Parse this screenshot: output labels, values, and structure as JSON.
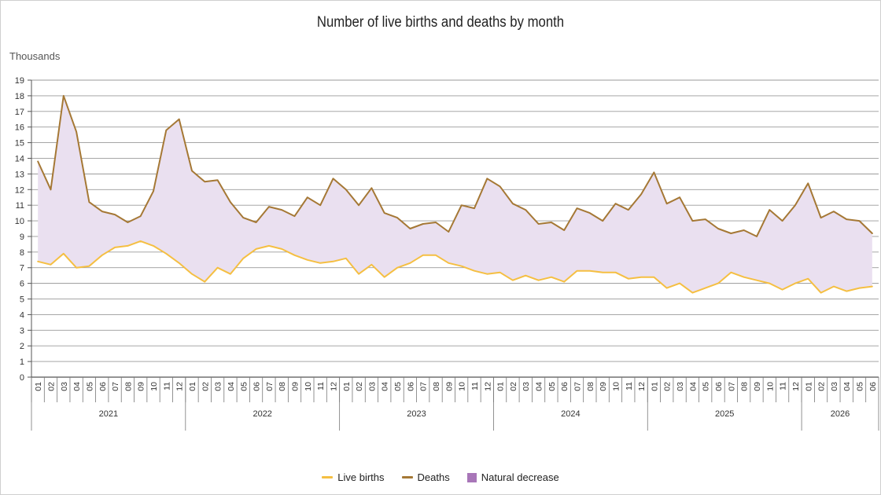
{
  "chart_data": {
    "type": "line",
    "title": "Number of live births and deaths by month",
    "ylabel": "Thousands",
    "xlabel": "",
    "ylim": [
      0,
      19
    ],
    "yticks": [
      0,
      1,
      2,
      3,
      4,
      5,
      6,
      7,
      8,
      9,
      10,
      11,
      12,
      13,
      14,
      15,
      16,
      17,
      18,
      19
    ],
    "grid": true,
    "legend_position": "bottom-center",
    "years": [
      {
        "label": "2021",
        "months": 12
      },
      {
        "label": "2022",
        "months": 12
      },
      {
        "label": "2023",
        "months": 12
      },
      {
        "label": "2024",
        "months": 12
      },
      {
        "label": "2025",
        "months": 12
      },
      {
        "label": "2026",
        "months": 6
      }
    ],
    "month_labels": [
      "01",
      "02",
      "03",
      "04",
      "05",
      "06",
      "07",
      "08",
      "09",
      "10",
      "11",
      "12"
    ],
    "series": [
      {
        "name": "Live births",
        "color": "#f5bf42",
        "values": [
          7.4,
          7.2,
          7.9,
          7.0,
          7.1,
          7.8,
          8.3,
          8.4,
          8.7,
          8.4,
          7.9,
          7.3,
          6.6,
          6.1,
          7.0,
          6.6,
          7.6,
          8.2,
          8.4,
          8.2,
          7.8,
          7.5,
          7.3,
          7.4,
          7.6,
          6.6,
          7.2,
          6.4,
          7.0,
          7.3,
          7.8,
          7.8,
          7.3,
          7.1,
          6.8,
          6.6,
          6.7,
          6.2,
          6.5,
          6.2,
          6.4,
          6.1,
          6.8,
          6.8,
          6.7,
          6.7,
          6.3,
          6.4,
          6.4,
          5.7,
          6.0,
          5.4,
          5.7,
          6.0,
          6.7,
          6.4,
          6.2,
          6.0,
          5.6,
          6.0,
          6.3,
          5.4,
          5.8,
          5.5,
          5.7,
          5.8
        ]
      },
      {
        "name": "Deaths",
        "color": "#a57835",
        "values": [
          13.8,
          12.0,
          18.0,
          15.7,
          11.2,
          10.6,
          10.4,
          9.9,
          10.3,
          11.9,
          15.8,
          16.5,
          13.2,
          12.5,
          12.6,
          11.2,
          10.2,
          9.9,
          10.9,
          10.7,
          10.3,
          11.5,
          11.0,
          12.7,
          12.0,
          11.0,
          12.1,
          10.5,
          10.2,
          9.5,
          9.8,
          9.9,
          9.3,
          11.0,
          10.8,
          12.7,
          12.2,
          11.1,
          10.7,
          9.8,
          9.9,
          9.4,
          10.8,
          10.5,
          10.0,
          11.1,
          10.7,
          11.7,
          13.1,
          11.1,
          11.5,
          10.0,
          10.1,
          9.5,
          9.2,
          9.4,
          9.0,
          10.7,
          10.0,
          11.0,
          12.4,
          10.2,
          10.6,
          10.1,
          10.0,
          9.2
        ]
      }
    ],
    "area": {
      "name": "Natural decrease",
      "color": "#a876b8",
      "fill": "#eae0f0"
    }
  }
}
